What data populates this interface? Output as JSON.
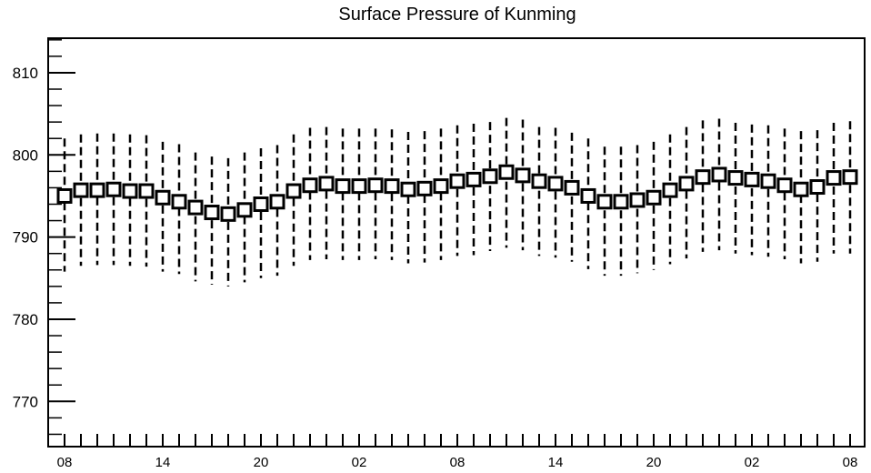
{
  "chart_data": {
    "type": "boxplot",
    "title": "Surface Pressure of Kunming",
    "xlabel": "",
    "ylabel": "",
    "ylim": [
      764.5,
      814.2
    ],
    "yticks": [
      770,
      780,
      790,
      800,
      810
    ],
    "ytick_labels": [
      "770",
      "780",
      "790",
      "800",
      "810"
    ],
    "xtick_labels": [
      {
        "index": 0,
        "label": "08"
      },
      {
        "index": 6,
        "label": "14"
      },
      {
        "index": 12,
        "label": "20"
      },
      {
        "index": 18,
        "label": "02"
      },
      {
        "index": 24,
        "label": "08"
      },
      {
        "index": 30,
        "label": "14"
      },
      {
        "index": 36,
        "label": "20"
      },
      {
        "index": 42,
        "label": "02"
      },
      {
        "index": 48,
        "label": "08"
      }
    ],
    "grid": false,
    "median": [
      795.0,
      795.7,
      795.7,
      795.8,
      795.6,
      795.6,
      794.8,
      794.3,
      793.6,
      793.0,
      792.8,
      793.3,
      794.0,
      794.3,
      795.6,
      796.3,
      796.5,
      796.2,
      796.2,
      796.3,
      796.2,
      795.8,
      795.9,
      796.2,
      796.8,
      797.0,
      797.4,
      797.9,
      797.5,
      796.8,
      796.5,
      796.0,
      795.0,
      794.3,
      794.3,
      794.5,
      794.8,
      795.7,
      796.5,
      797.3,
      797.6,
      797.2,
      797.0,
      796.8,
      796.3,
      795.8,
      796.1,
      797.2,
      797.3
    ],
    "whisker_high": [
      802.0,
      802.5,
      802.6,
      802.6,
      802.5,
      802.4,
      801.6,
      801.3,
      800.3,
      799.8,
      799.6,
      800.3,
      800.8,
      801.2,
      802.5,
      803.3,
      803.4,
      803.2,
      803.2,
      803.2,
      803.1,
      802.8,
      802.9,
      803.2,
      803.6,
      803.8,
      804.0,
      804.5,
      804.3,
      803.4,
      803.3,
      802.7,
      802.0,
      801.0,
      801.0,
      801.2,
      801.6,
      802.5,
      803.4,
      804.2,
      804.4,
      803.9,
      803.7,
      803.6,
      803.2,
      802.9,
      803.0,
      803.9,
      804.1
    ],
    "whisker_low": [
      785.8,
      786.5,
      786.6,
      786.6,
      786.5,
      786.4,
      785.8,
      785.5,
      784.6,
      784.2,
      784.0,
      784.5,
      785.0,
      785.3,
      786.5,
      787.2,
      787.3,
      787.2,
      787.2,
      787.3,
      787.2,
      786.8,
      786.9,
      787.2,
      787.7,
      787.8,
      788.3,
      788.7,
      788.4,
      787.7,
      787.5,
      787.0,
      786.1,
      785.3,
      785.3,
      785.6,
      786.0,
      786.7,
      787.4,
      788.2,
      788.4,
      788.0,
      787.8,
      787.6,
      787.3,
      786.8,
      787.0,
      788.0,
      788.0
    ]
  }
}
